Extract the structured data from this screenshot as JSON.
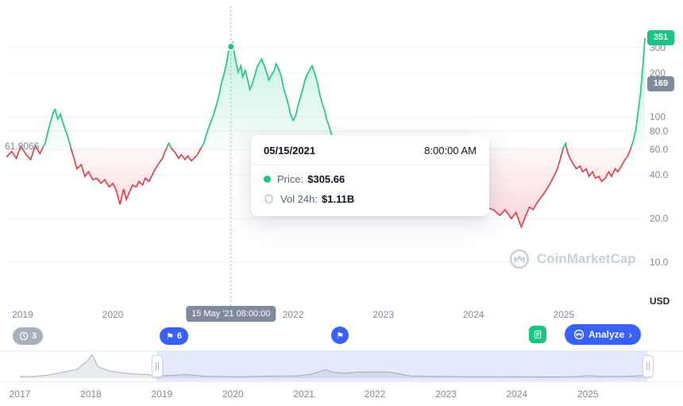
{
  "tooltip": {
    "date": "05/15/2021",
    "time": "8:00:00 AM",
    "price_label": "Price:",
    "price_value": "$305.66",
    "vol_label": "Vol 24h:",
    "vol_value": "$1.11B"
  },
  "crosshair_badge": "15 May '21 08:00:00",
  "baseline_label": "61.9066",
  "axis_unit": "USD",
  "badges": {
    "latest": "351",
    "reference": "169"
  },
  "markers": {
    "history_count": "3",
    "flag_count": "6",
    "flag_glyph": "⚑",
    "analyze_label": "Analyze",
    "analyze_chevron": "›"
  },
  "watermark": "CoinMarketCap",
  "chart_data": {
    "type": "line",
    "title": "Price chart (log scale)",
    "y_scale": "log",
    "unit": "USD",
    "baseline": 61.9066,
    "xlim": [
      2018.82,
      2025.9
    ],
    "ylim": [
      5,
      580
    ],
    "y_ticks": [
      300,
      200,
      100,
      80,
      60,
      40,
      20,
      10
    ],
    "x_ticks": [
      2019,
      2020,
      2021,
      2022,
      2023,
      2024,
      2025
    ],
    "x_labels": [
      "2019",
      "2020",
      "2021",
      "2022",
      "2023",
      "2024",
      "2025"
    ],
    "latest_price": 351,
    "reference_price": 169,
    "up_color": "#16c784",
    "down_color": "#ea3943",
    "grid_color": "#f0f2f5",
    "crosshair": {
      "x": 2021.31,
      "price": 305.66,
      "date": "05/15/2021",
      "time": "8:00:00 AM",
      "vol_24h": "$1.11B"
    },
    "points": [
      [
        2018.82,
        53
      ],
      [
        2018.88,
        58
      ],
      [
        2018.93,
        52
      ],
      [
        2018.98,
        63
      ],
      [
        2019.04,
        55
      ],
      [
        2019.09,
        51
      ],
      [
        2019.14,
        64
      ],
      [
        2019.19,
        56
      ],
      [
        2019.25,
        66
      ],
      [
        2019.29,
        84
      ],
      [
        2019.34,
        108
      ],
      [
        2019.36,
        113
      ],
      [
        2019.39,
        97
      ],
      [
        2019.42,
        105
      ],
      [
        2019.46,
        86
      ],
      [
        2019.5,
        74
      ],
      [
        2019.53,
        63
      ],
      [
        2019.57,
        52
      ],
      [
        2019.6,
        44
      ],
      [
        2019.65,
        47
      ],
      [
        2019.69,
        39
      ],
      [
        2019.73,
        42
      ],
      [
        2019.78,
        37
      ],
      [
        2019.82,
        38
      ],
      [
        2019.87,
        35
      ],
      [
        2019.91,
        37
      ],
      [
        2019.96,
        33
      ],
      [
        2020.0,
        35
      ],
      [
        2020.04,
        31
      ],
      [
        2020.08,
        25
      ],
      [
        2020.12,
        32
      ],
      [
        2020.15,
        27
      ],
      [
        2020.19,
        31
      ],
      [
        2020.22,
        34
      ],
      [
        2020.26,
        33
      ],
      [
        2020.29,
        36
      ],
      [
        2020.33,
        34
      ],
      [
        2020.36,
        38
      ],
      [
        2020.4,
        36
      ],
      [
        2020.43,
        39
      ],
      [
        2020.47,
        44
      ],
      [
        2020.5,
        47
      ],
      [
        2020.55,
        52
      ],
      [
        2020.58,
        58
      ],
      [
        2020.62,
        66
      ],
      [
        2020.65,
        61
      ],
      [
        2020.69,
        57
      ],
      [
        2020.73,
        52
      ],
      [
        2020.76,
        55
      ],
      [
        2020.8,
        51
      ],
      [
        2020.83,
        54
      ],
      [
        2020.87,
        50
      ],
      [
        2020.9,
        52
      ],
      [
        2020.94,
        55
      ],
      [
        2020.97,
        60
      ],
      [
        2021.01,
        66
      ],
      [
        2021.04,
        77
      ],
      [
        2021.08,
        90
      ],
      [
        2021.12,
        105
      ],
      [
        2021.15,
        122
      ],
      [
        2021.18,
        143
      ],
      [
        2021.2,
        167
      ],
      [
        2021.23,
        195
      ],
      [
        2021.26,
        233
      ],
      [
        2021.28,
        278
      ],
      [
        2021.31,
        305.66
      ],
      [
        2021.33,
        330
      ],
      [
        2021.34,
        292
      ],
      [
        2021.36,
        251
      ],
      [
        2021.39,
        204
      ],
      [
        2021.42,
        226
      ],
      [
        2021.44,
        189
      ],
      [
        2021.47,
        210
      ],
      [
        2021.5,
        176
      ],
      [
        2021.52,
        155
      ],
      [
        2021.55,
        172
      ],
      [
        2021.58,
        199
      ],
      [
        2021.6,
        222
      ],
      [
        2021.63,
        239
      ],
      [
        2021.65,
        251
      ],
      [
        2021.68,
        226
      ],
      [
        2021.71,
        199
      ],
      [
        2021.73,
        180
      ],
      [
        2021.76,
        195
      ],
      [
        2021.79,
        210
      ],
      [
        2021.81,
        233
      ],
      [
        2021.84,
        215
      ],
      [
        2021.87,
        189
      ],
      [
        2021.89,
        163
      ],
      [
        2021.92,
        140
      ],
      [
        2021.95,
        120
      ],
      [
        2021.97,
        105
      ],
      [
        2022.0,
        95
      ],
      [
        2022.03,
        103
      ],
      [
        2022.05,
        118
      ],
      [
        2022.08,
        136
      ],
      [
        2022.11,
        159
      ],
      [
        2022.13,
        180
      ],
      [
        2022.16,
        199
      ],
      [
        2022.19,
        215
      ],
      [
        2022.21,
        226
      ],
      [
        2022.24,
        199
      ],
      [
        2022.27,
        172
      ],
      [
        2022.29,
        147
      ],
      [
        2022.32,
        125
      ],
      [
        2022.35,
        110
      ],
      [
        2022.37,
        97
      ],
      [
        2022.4,
        86
      ],
      [
        2022.42,
        77
      ],
      [
        2022.45,
        70
      ],
      [
        2022.5,
        60
      ],
      [
        2022.54,
        52
      ],
      [
        2022.63,
        47
      ],
      [
        2022.72,
        41
      ],
      [
        2022.81,
        38
      ],
      [
        2022.89,
        39
      ],
      [
        2022.98,
        35
      ],
      [
        2023.07,
        32
      ],
      [
        2023.16,
        34
      ],
      [
        2023.25,
        31
      ],
      [
        2023.34,
        33
      ],
      [
        2023.42,
        29
      ],
      [
        2023.51,
        31
      ],
      [
        2023.6,
        28
      ],
      [
        2023.69,
        29
      ],
      [
        2023.78,
        27
      ],
      [
        2023.87,
        28
      ],
      [
        2023.96,
        26
      ],
      [
        2024.04,
        27
      ],
      [
        2024.13,
        24
      ],
      [
        2024.22,
        23
      ],
      [
        2024.29,
        21
      ],
      [
        2024.35,
        23
      ],
      [
        2024.42,
        20
      ],
      [
        2024.47,
        22
      ],
      [
        2024.53,
        17.5
      ],
      [
        2024.58,
        21
      ],
      [
        2024.62,
        24
      ],
      [
        2024.66,
        23
      ],
      [
        2024.71,
        26
      ],
      [
        2024.75,
        28
      ],
      [
        2024.8,
        31
      ],
      [
        2024.84,
        34
      ],
      [
        2024.89,
        39
      ],
      [
        2024.93,
        44
      ],
      [
        2024.96,
        51
      ],
      [
        2024.99,
        60
      ],
      [
        2025.02,
        66
      ],
      [
        2025.04,
        58
      ],
      [
        2025.07,
        52
      ],
      [
        2025.11,
        47
      ],
      [
        2025.14,
        44
      ],
      [
        2025.18,
        46
      ],
      [
        2025.21,
        42
      ],
      [
        2025.25,
        44
      ],
      [
        2025.28,
        39
      ],
      [
        2025.32,
        42
      ],
      [
        2025.35,
        38
      ],
      [
        2025.39,
        39
      ],
      [
        2025.42,
        36
      ],
      [
        2025.46,
        38
      ],
      [
        2025.5,
        42
      ],
      [
        2025.53,
        39
      ],
      [
        2025.57,
        44
      ],
      [
        2025.6,
        42
      ],
      [
        2025.64,
        46
      ],
      [
        2025.67,
        50
      ],
      [
        2025.71,
        54
      ],
      [
        2025.74,
        60
      ],
      [
        2025.77,
        68
      ],
      [
        2025.8,
        82
      ],
      [
        2025.82,
        103
      ],
      [
        2025.85,
        143
      ],
      [
        2025.88,
        233
      ],
      [
        2025.9,
        351
      ]
    ],
    "mini": {
      "xlim": [
        2016.81,
        2026.25
      ],
      "ymax": 900,
      "window": [
        2018.92,
        2025.84
      ],
      "x_ticks": [
        2017,
        2018,
        2019,
        2020,
        2021,
        2022,
        2023,
        2024,
        2025
      ],
      "x_labels": [
        "2017",
        "2018",
        "2019",
        "2020",
        "2021",
        "2022",
        "2023",
        "2024",
        "2025"
      ],
      "points": [
        [
          2017.0,
          30
        ],
        [
          2017.2,
          40
        ],
        [
          2017.4,
          90
        ],
        [
          2017.6,
          200
        ],
        [
          2017.8,
          300
        ],
        [
          2017.95,
          650
        ],
        [
          2018.02,
          880
        ],
        [
          2018.1,
          420
        ],
        [
          2018.25,
          260
        ],
        [
          2018.4,
          190
        ],
        [
          2018.6,
          140
        ],
        [
          2018.8,
          110
        ],
        [
          2019.0,
          58
        ],
        [
          2019.35,
          110
        ],
        [
          2019.6,
          45
        ],
        [
          2019.8,
          38
        ],
        [
          2020.1,
          28
        ],
        [
          2020.5,
          50
        ],
        [
          2020.9,
          60
        ],
        [
          2021.1,
          120
        ],
        [
          2021.31,
          306
        ],
        [
          2021.4,
          210
        ],
        [
          2021.55,
          160
        ],
        [
          2021.8,
          210
        ],
        [
          2022.2,
          210
        ],
        [
          2022.5,
          60
        ],
        [
          2022.9,
          38
        ],
        [
          2023.3,
          32
        ],
        [
          2023.7,
          28
        ],
        [
          2024.1,
          26
        ],
        [
          2024.53,
          17
        ],
        [
          2024.8,
          30
        ],
        [
          2025.0,
          66
        ],
        [
          2025.2,
          45
        ],
        [
          2025.5,
          40
        ],
        [
          2025.75,
          65
        ],
        [
          2025.85,
          140
        ],
        [
          2025.9,
          351
        ]
      ]
    }
  }
}
